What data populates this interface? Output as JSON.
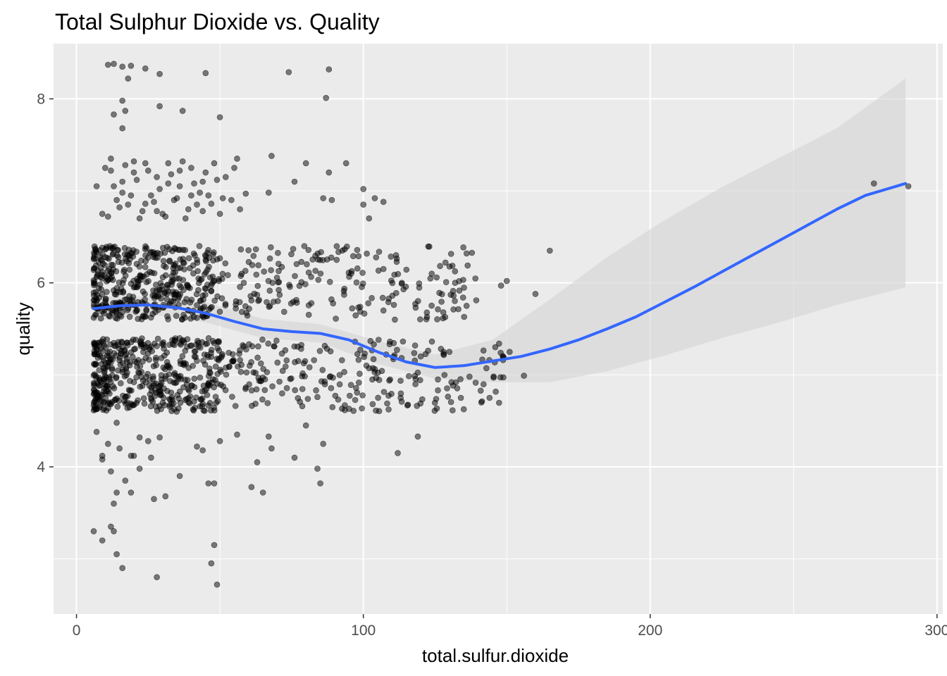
{
  "chart_data": {
    "type": "scatter",
    "title": "Total Sulphur Dioxide vs. Quality",
    "xlabel": "total.sulfur.dioxide",
    "ylabel": "quality",
    "xlim": [
      -8,
      302
    ],
    "ylim": [
      2.4,
      8.6
    ],
    "x_ticks": [
      0,
      100,
      200,
      300
    ],
    "x_tick_labels": [
      "0",
      "100",
      "200",
      "300"
    ],
    "x_minor_ticks": [
      50,
      150,
      250
    ],
    "y_ticks": [
      4,
      6,
      8
    ],
    "y_tick_labels": [
      "4",
      "6",
      "8"
    ],
    "y_minor_ticks": [
      3,
      5,
      7
    ],
    "grid": true,
    "legend": "none",
    "colors": {
      "panel_background": "#EBEBEB",
      "grid": "#FFFFFF",
      "points": "#000000",
      "smooth_line": "#3366FF",
      "confidence_band": "#D4D4D4"
    },
    "jitter": {
      "x": 0.4,
      "y": 0.4
    },
    "point_alpha": 0.5,
    "smooth": {
      "method": "loess",
      "line": [
        [
          6,
          5.72
        ],
        [
          15,
          5.75
        ],
        [
          25,
          5.76
        ],
        [
          35,
          5.73
        ],
        [
          45,
          5.67
        ],
        [
          55,
          5.58
        ],
        [
          65,
          5.5
        ],
        [
          75,
          5.47
        ],
        [
          85,
          5.45
        ],
        [
          95,
          5.38
        ],
        [
          105,
          5.25
        ],
        [
          115,
          5.14
        ],
        [
          125,
          5.08
        ],
        [
          135,
          5.1
        ],
        [
          145,
          5.15
        ],
        [
          155,
          5.2
        ],
        [
          165,
          5.28
        ],
        [
          175,
          5.38
        ],
        [
          185,
          5.5
        ],
        [
          195,
          5.63
        ],
        [
          205,
          5.79
        ],
        [
          215,
          5.95
        ],
        [
          225,
          6.12
        ],
        [
          235,
          6.29
        ],
        [
          245,
          6.46
        ],
        [
          255,
          6.63
        ],
        [
          265,
          6.8
        ],
        [
          275,
          6.95
        ],
        [
          289,
          7.08
        ]
      ],
      "ci_upper": [
        [
          6,
          5.85
        ],
        [
          25,
          5.85
        ],
        [
          45,
          5.79
        ],
        [
          65,
          5.61
        ],
        [
          85,
          5.55
        ],
        [
          105,
          5.37
        ],
        [
          125,
          5.22
        ],
        [
          145,
          5.38
        ],
        [
          165,
          5.82
        ],
        [
          185,
          6.28
        ],
        [
          205,
          6.68
        ],
        [
          225,
          7.04
        ],
        [
          245,
          7.36
        ],
        [
          265,
          7.68
        ],
        [
          289,
          8.22
        ]
      ],
      "ci_lower": [
        [
          6,
          5.58
        ],
        [
          25,
          5.66
        ],
        [
          45,
          5.57
        ],
        [
          65,
          5.4
        ],
        [
          85,
          5.35
        ],
        [
          105,
          5.12
        ],
        [
          125,
          4.96
        ],
        [
          145,
          4.92
        ],
        [
          165,
          4.92
        ],
        [
          185,
          5.04
        ],
        [
          205,
          5.21
        ],
        [
          225,
          5.4
        ],
        [
          245,
          5.57
        ],
        [
          265,
          5.76
        ],
        [
          289,
          5.95
        ]
      ]
    },
    "series": [
      {
        "quality": 3,
        "values": [
          [
            6,
            3.3
          ],
          [
            9,
            3.2
          ],
          [
            12,
            3.35
          ],
          [
            14,
            3.05
          ],
          [
            16,
            2.9
          ],
          [
            28,
            2.8
          ],
          [
            47,
            2.95
          ],
          [
            48,
            3.15
          ],
          [
            49,
            2.72
          ],
          [
            13,
            3.3
          ]
        ]
      },
      {
        "quality": 4,
        "values": [
          [
            7,
            4.38
          ],
          [
            9,
            4.12
          ],
          [
            11,
            4.25
          ],
          [
            12,
            3.95
          ],
          [
            13,
            3.6
          ],
          [
            14,
            3.72
          ],
          [
            15,
            4.2
          ],
          [
            17,
            3.85
          ],
          [
            19,
            3.72
          ],
          [
            20,
            4.12
          ],
          [
            22,
            3.98
          ],
          [
            25,
            4.28
          ],
          [
            27,
            3.65
          ],
          [
            29,
            4.32
          ],
          [
            31,
            3.68
          ],
          [
            36,
            3.9
          ],
          [
            42,
            4.22
          ],
          [
            46,
            3.82
          ],
          [
            48,
            3.82
          ],
          [
            50,
            4.28
          ],
          [
            56,
            4.35
          ],
          [
            61,
            3.78
          ],
          [
            63,
            4.05
          ],
          [
            65,
            3.72
          ],
          [
            67,
            4.33
          ],
          [
            76,
            4.1
          ],
          [
            84,
            3.98
          ],
          [
            85,
            3.82
          ],
          [
            86,
            4.25
          ],
          [
            112,
            4.15
          ],
          [
            119,
            4.33
          ],
          [
            9,
            4.08
          ],
          [
            12,
            4.68
          ],
          [
            14,
            4.48
          ],
          [
            19,
            4.12
          ],
          [
            22,
            4.32
          ],
          [
            26,
            4.1
          ],
          [
            44,
            4.18
          ],
          [
            68,
            4.2
          ],
          [
            80,
            4.45
          ]
        ]
      },
      {
        "quality": 7,
        "values": [
          [
            7,
            7.05
          ],
          [
            9,
            6.75
          ],
          [
            10,
            7.25
          ],
          [
            12,
            7.35
          ],
          [
            14,
            6.9
          ],
          [
            16,
            7.1
          ],
          [
            18,
            6.85
          ],
          [
            20,
            7.2
          ],
          [
            22,
            6.7
          ],
          [
            24,
            7.3
          ],
          [
            26,
            6.95
          ],
          [
            28,
            7.15
          ],
          [
            30,
            6.75
          ],
          [
            32,
            7.3
          ],
          [
            34,
            6.9
          ],
          [
            36,
            7.05
          ],
          [
            38,
            6.7
          ],
          [
            40,
            7.25
          ],
          [
            42,
            6.85
          ],
          [
            44,
            7.1
          ],
          [
            46,
            6.95
          ],
          [
            48,
            7.3
          ],
          [
            50,
            6.75
          ],
          [
            52,
            7.15
          ],
          [
            54,
            6.9
          ],
          [
            56,
            7.35
          ],
          [
            59,
            6.97
          ],
          [
            68,
            7.38
          ],
          [
            67,
            6.98
          ],
          [
            76,
            7.1
          ],
          [
            80,
            7.3
          ],
          [
            86,
            6.92
          ],
          [
            89,
            6.9
          ],
          [
            88,
            7.2
          ],
          [
            94,
            7.3
          ],
          [
            100,
            7.02
          ],
          [
            100,
            6.85
          ],
          [
            102,
            6.7
          ],
          [
            104,
            6.92
          ],
          [
            107,
            6.88
          ],
          [
            11,
            6.72
          ],
          [
            13,
            7.05
          ],
          [
            15,
            6.82
          ],
          [
            17,
            7.28
          ],
          [
            19,
            6.95
          ],
          [
            21,
            7.12
          ],
          [
            23,
            6.78
          ],
          [
            25,
            7.22
          ],
          [
            27,
            6.88
          ],
          [
            29,
            7.02
          ],
          [
            31,
            6.72
          ],
          [
            33,
            7.18
          ],
          [
            35,
            6.92
          ],
          [
            37,
            7.32
          ],
          [
            39,
            6.8
          ],
          [
            41,
            7.08
          ],
          [
            43,
            6.98
          ],
          [
            45,
            7.2
          ],
          [
            47,
            6.86
          ],
          [
            49,
            7.12
          ],
          [
            51,
            6.92
          ],
          [
            55,
            7.25
          ],
          [
            57,
            6.8
          ],
          [
            12,
            7.22
          ],
          [
            16,
            6.98
          ],
          [
            20,
            7.32
          ],
          [
            24,
            6.86
          ],
          [
            28,
            6.78
          ],
          [
            32,
            7.08
          ],
          [
            36,
            7.22
          ],
          [
            40,
            6.95
          ],
          [
            44,
            6.78
          ],
          [
            278,
            7.08
          ],
          [
            290,
            7.05
          ]
        ]
      },
      {
        "quality": 8,
        "values": [
          [
            11,
            8.37
          ],
          [
            13,
            8.38
          ],
          [
            16,
            8.35
          ],
          [
            19,
            8.36
          ],
          [
            24,
            8.33
          ],
          [
            29,
            8.27
          ],
          [
            45,
            8.28
          ],
          [
            74,
            8.29
          ],
          [
            88,
            8.32
          ],
          [
            13,
            7.83
          ],
          [
            16,
            7.98
          ],
          [
            17,
            7.87
          ],
          [
            16,
            7.68
          ],
          [
            18,
            8.22
          ],
          [
            29,
            7.92
          ],
          [
            37,
            7.87
          ],
          [
            50,
            7.8
          ],
          [
            87,
            8.01
          ]
        ]
      },
      {
        "quality": 5,
        "generator": "jitter_band",
        "n": 680,
        "x_range": [
          6,
          150
        ],
        "x_mode": 30
      },
      {
        "quality": 6,
        "generator": "jitter_band",
        "n": 620,
        "x_range": [
          6,
          140
        ],
        "x_mode": 28
      }
    ],
    "outliers_q5": [
      [
        113,
        4.75
      ],
      [
        120,
        5.2
      ],
      [
        126,
        4.95
      ],
      [
        137,
        4.98
      ],
      [
        144,
        4.75
      ],
      [
        146,
        5.3
      ],
      [
        151,
        5.25
      ],
      [
        156,
        4.99
      ],
      [
        130,
        5.25
      ],
      [
        134,
        4.75
      ],
      [
        128,
        5.25
      ]
    ],
    "outliers_q6": [
      [
        136,
        6.32
      ],
      [
        136,
        5.75
      ],
      [
        148,
        5.97
      ],
      [
        150,
        6.02
      ],
      [
        160,
        5.88
      ],
      [
        165,
        6.35
      ],
      [
        114,
        5.93
      ],
      [
        107,
        6.15
      ],
      [
        107,
        5.7
      ],
      [
        111,
        5.6
      ]
    ]
  }
}
